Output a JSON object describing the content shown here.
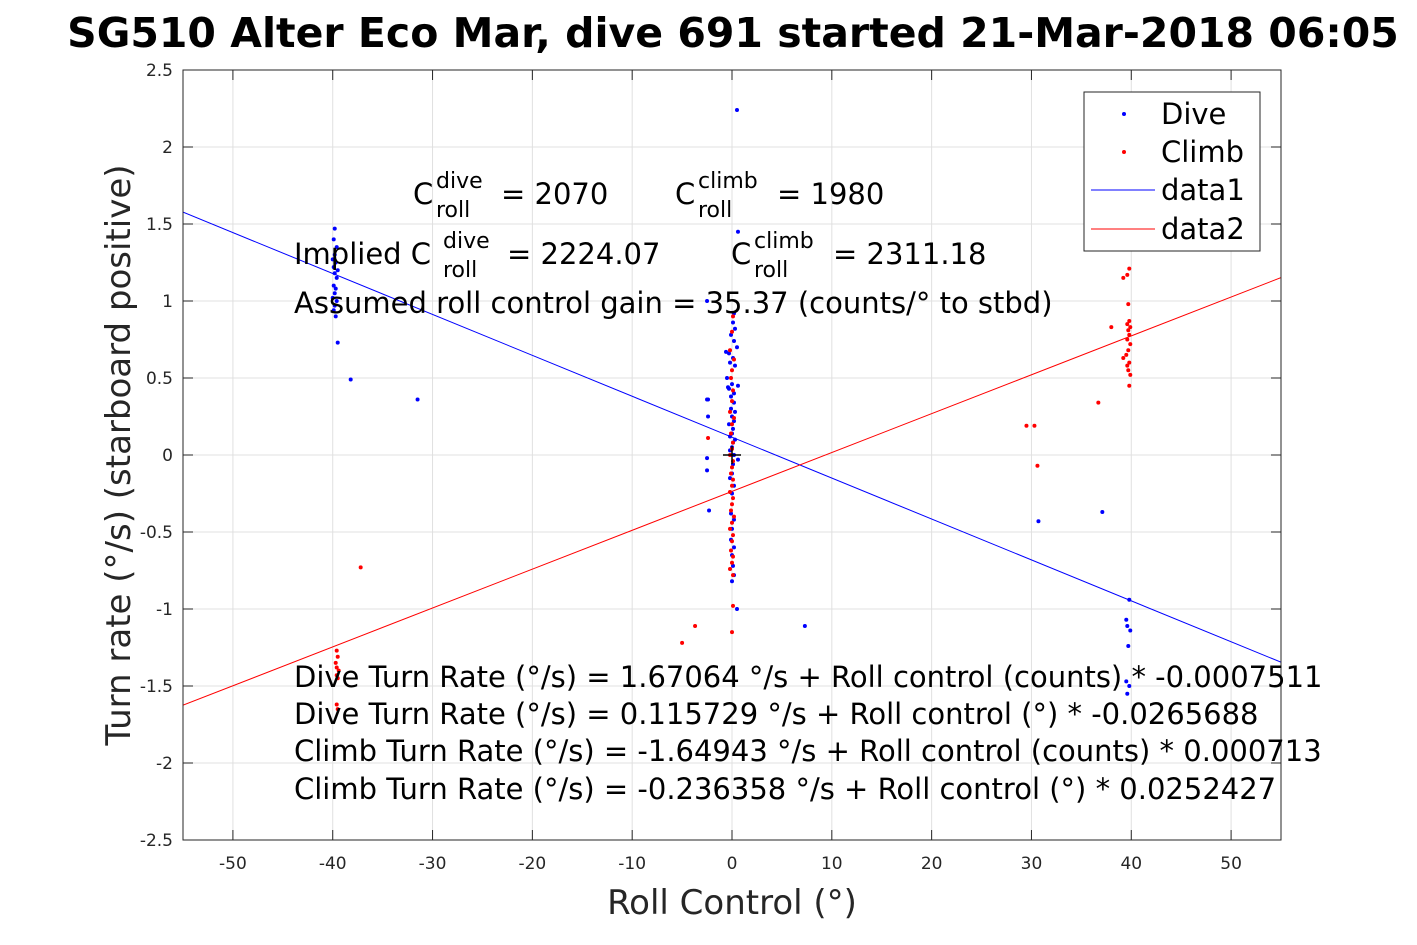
{
  "chart_data": {
    "type": "scatter",
    "title": "SG510 Alter Eco Mar, dive 691 started 21-Mar-2018 06:05",
    "xlabel": "Roll Control (°)",
    "ylabel": "Turn rate (°/s) (starboard positive)",
    "xlim": [
      -55,
      55
    ],
    "ylim": [
      -2.5,
      2.5
    ],
    "x_ticks": [
      -50,
      -40,
      -30,
      -20,
      -10,
      0,
      10,
      20,
      30,
      40,
      50
    ],
    "x_tick_labels": [
      "-50",
      "-40",
      "-30",
      "-20",
      "-10",
      "0",
      "10",
      "20",
      "30",
      "40",
      "50"
    ],
    "y_ticks": [
      2.5,
      2,
      1.5,
      1,
      0.5,
      0,
      -0.5,
      -1,
      -1.5,
      -2,
      -2.5
    ],
    "y_tick_labels": [
      "2.5",
      "2",
      "1.5",
      "1",
      "0.5",
      "0",
      "-0.5",
      "-1",
      "-1.5",
      "-2",
      "-2.5"
    ],
    "grid": true,
    "legend_placement": "top-right",
    "legend": [
      "Dive",
      "Climb",
      "data1",
      "data2"
    ],
    "colors": {
      "dive": "#0000ff",
      "climb": "#ff0000",
      "axis": "#262626",
      "grid": "#e0e0e0"
    },
    "series": [
      {
        "name": "Dive",
        "kind": "points",
        "points": [
          [
            -39.8,
            1.47
          ],
          [
            -39.9,
            1.4
          ],
          [
            -39.6,
            1.35
          ],
          [
            -39.8,
            1.3
          ],
          [
            -40.0,
            1.27
          ],
          [
            -39.7,
            1.25
          ],
          [
            -39.9,
            1.22
          ],
          [
            -39.5,
            1.2
          ],
          [
            -39.8,
            1.18
          ],
          [
            -39.6,
            1.15
          ],
          [
            -39.9,
            1.1
          ],
          [
            -39.7,
            1.08
          ],
          [
            -39.8,
            1.05
          ],
          [
            -40.0,
            1.02
          ],
          [
            -39.6,
            1.0
          ],
          [
            -39.8,
            0.97
          ],
          [
            -39.9,
            0.94
          ],
          [
            -39.7,
            0.9
          ],
          [
            -39.5,
            0.73
          ],
          [
            -38.2,
            0.49
          ],
          [
            -31.5,
            0.36
          ],
          [
            0.5,
            2.24
          ],
          [
            0.6,
            1.45
          ],
          [
            -2.5,
            1.0
          ],
          [
            0.2,
            0.92
          ],
          [
            0.1,
            0.86
          ],
          [
            0.3,
            0.82
          ],
          [
            -0.1,
            0.78
          ],
          [
            0.2,
            0.74
          ],
          [
            0.5,
            0.7
          ],
          [
            -0.6,
            0.67
          ],
          [
            -0.3,
            0.66
          ],
          [
            0.1,
            0.63
          ],
          [
            -0.2,
            0.6
          ],
          [
            0.3,
            0.58
          ],
          [
            -0.5,
            0.5
          ],
          [
            0.0,
            0.46
          ],
          [
            0.6,
            0.45
          ],
          [
            -0.4,
            0.44
          ],
          [
            -0.3,
            0.43
          ],
          [
            0.2,
            0.4
          ],
          [
            -0.1,
            0.38
          ],
          [
            -2.5,
            0.36
          ],
          [
            -2.4,
            0.36
          ],
          [
            0.2,
            0.34
          ],
          [
            -0.1,
            0.3
          ],
          [
            0.3,
            0.28
          ],
          [
            0.0,
            0.25
          ],
          [
            -2.4,
            0.25
          ],
          [
            0.2,
            0.22
          ],
          [
            -0.3,
            0.2
          ],
          [
            0.1,
            0.17
          ],
          [
            0.0,
            0.14
          ],
          [
            -0.2,
            0.12
          ],
          [
            0.3,
            0.1
          ],
          [
            0.1,
            0.08
          ],
          [
            0.0,
            0.05
          ],
          [
            -0.2,
            0.03
          ],
          [
            0.2,
            0.0
          ],
          [
            -2.5,
            -0.02
          ],
          [
            0.6,
            -0.03
          ],
          [
            0.1,
            -0.06
          ],
          [
            -2.5,
            -0.1
          ],
          [
            0.0,
            -0.12
          ],
          [
            -0.2,
            -0.15
          ],
          [
            0.2,
            -0.2
          ],
          [
            0.0,
            -0.25
          ],
          [
            -2.3,
            -0.36
          ],
          [
            -0.1,
            -0.38
          ],
          [
            0.2,
            -0.42
          ],
          [
            0.0,
            -0.48
          ],
          [
            -0.1,
            -0.55
          ],
          [
            0.2,
            -0.6
          ],
          [
            0.0,
            -0.65
          ],
          [
            0.1,
            -0.72
          ],
          [
            0.2,
            -0.78
          ],
          [
            0.0,
            -0.82
          ],
          [
            0.5,
            -1.0
          ],
          [
            7.3,
            -1.11
          ],
          [
            30.7,
            -0.43
          ],
          [
            37.1,
            -0.37
          ],
          [
            39.5,
            -1.07
          ],
          [
            39.8,
            -0.94
          ],
          [
            39.6,
            -1.11
          ],
          [
            39.9,
            -1.14
          ],
          [
            39.7,
            -1.24
          ],
          [
            39.5,
            -1.47
          ],
          [
            39.8,
            -1.5
          ],
          [
            39.6,
            -1.55
          ]
        ]
      },
      {
        "name": "Climb",
        "kind": "points",
        "points": [
          [
            -37.2,
            -0.73
          ],
          [
            -39.6,
            -1.27
          ],
          [
            -39.5,
            -1.31
          ],
          [
            -39.7,
            -1.35
          ],
          [
            -39.6,
            -1.38
          ],
          [
            -39.4,
            -1.4
          ],
          [
            -39.6,
            -1.43
          ],
          [
            -39.5,
            -1.45
          ],
          [
            -39.6,
            -1.62
          ],
          [
            -39.5,
            -1.65
          ],
          [
            -3.7,
            -1.11
          ],
          [
            -5.0,
            -1.22
          ],
          [
            0.0,
            -1.15
          ],
          [
            0.1,
            -0.98
          ],
          [
            -2.4,
            0.11
          ],
          [
            0.1,
            0.9
          ],
          [
            0.0,
            0.8
          ],
          [
            -0.2,
            0.68
          ],
          [
            0.2,
            0.62
          ],
          [
            0.0,
            0.55
          ],
          [
            -0.1,
            0.5
          ],
          [
            0.1,
            0.42
          ],
          [
            0.0,
            0.35
          ],
          [
            -0.2,
            0.28
          ],
          [
            0.2,
            0.24
          ],
          [
            0.0,
            0.2
          ],
          [
            -0.1,
            0.14
          ],
          [
            0.1,
            0.08
          ],
          [
            0.0,
            0.04
          ],
          [
            -0.2,
            0.0
          ],
          [
            0.1,
            -0.04
          ],
          [
            0.0,
            -0.08
          ],
          [
            -0.1,
            -0.12
          ],
          [
            0.1,
            -0.16
          ],
          [
            0.0,
            -0.2
          ],
          [
            -0.2,
            -0.24
          ],
          [
            0.1,
            -0.28
          ],
          [
            0.0,
            -0.32
          ],
          [
            -0.1,
            -0.36
          ],
          [
            0.2,
            -0.4
          ],
          [
            0.0,
            -0.44
          ],
          [
            -0.2,
            -0.48
          ],
          [
            0.1,
            -0.52
          ],
          [
            0.0,
            -0.56
          ],
          [
            -0.1,
            -0.62
          ],
          [
            0.1,
            -0.66
          ],
          [
            0.0,
            -0.7
          ],
          [
            -0.2,
            -0.74
          ],
          [
            0.1,
            -0.78
          ],
          [
            29.5,
            0.19
          ],
          [
            30.3,
            0.19
          ],
          [
            30.6,
            -0.07
          ],
          [
            36.7,
            0.34
          ],
          [
            38.0,
            0.83
          ],
          [
            39.2,
            1.15
          ],
          [
            39.8,
            1.21
          ],
          [
            39.6,
            1.17
          ],
          [
            39.7,
            0.98
          ],
          [
            39.8,
            0.87
          ],
          [
            39.6,
            0.85
          ],
          [
            39.9,
            0.83
          ],
          [
            39.7,
            0.81
          ],
          [
            39.8,
            0.78
          ],
          [
            39.6,
            0.75
          ],
          [
            39.9,
            0.72
          ],
          [
            39.7,
            0.68
          ],
          [
            39.5,
            0.65
          ],
          [
            39.2,
            0.63
          ],
          [
            39.8,
            0.6
          ],
          [
            39.6,
            0.58
          ],
          [
            39.7,
            0.55
          ],
          [
            39.9,
            0.52
          ],
          [
            39.8,
            0.45
          ]
        ]
      },
      {
        "name": "data1",
        "kind": "line",
        "color": "#0000ff",
        "intercept": 0.115729,
        "slope": -0.0265688
      },
      {
        "name": "data2",
        "kind": "line",
        "color": "#ff0000",
        "intercept": -0.236358,
        "slope": 0.0252427
      }
    ],
    "marker": {
      "symbol": "+",
      "x": 0,
      "y": 0
    },
    "annotations": {
      "c_roll_dive": {
        "base": "C",
        "sup": "dive",
        "sub": "roll",
        "value": "= 2070"
      },
      "c_roll_climb": {
        "base": "C",
        "sup": "climb",
        "sub": "roll",
        "value": "= 1980"
      },
      "implied_dive": {
        "prefix": "Implied C",
        "sup": "dive",
        "sub": "roll",
        "value": "= 2224.07"
      },
      "implied_climb": {
        "base": "C",
        "sup": "climb",
        "sub": "roll",
        "value": "= 2311.18"
      },
      "gain": "Assumed roll control gain = 35.37 (counts/° to stbd)",
      "eq1": "Dive Turn Rate (°/s) = 1.67064 °/s + Roll control (counts) * -0.0007511",
      "eq2": "Dive Turn Rate (°/s) = 0.115729 °/s + Roll control (°) * -0.0265688",
      "eq3": "Climb Turn Rate (°/s) = -1.64943 °/s + Roll control (counts) * 0.000713",
      "eq4": "Climb Turn Rate (°/s) = -0.236358 °/s + Roll control (°) * 0.0252427"
    }
  }
}
